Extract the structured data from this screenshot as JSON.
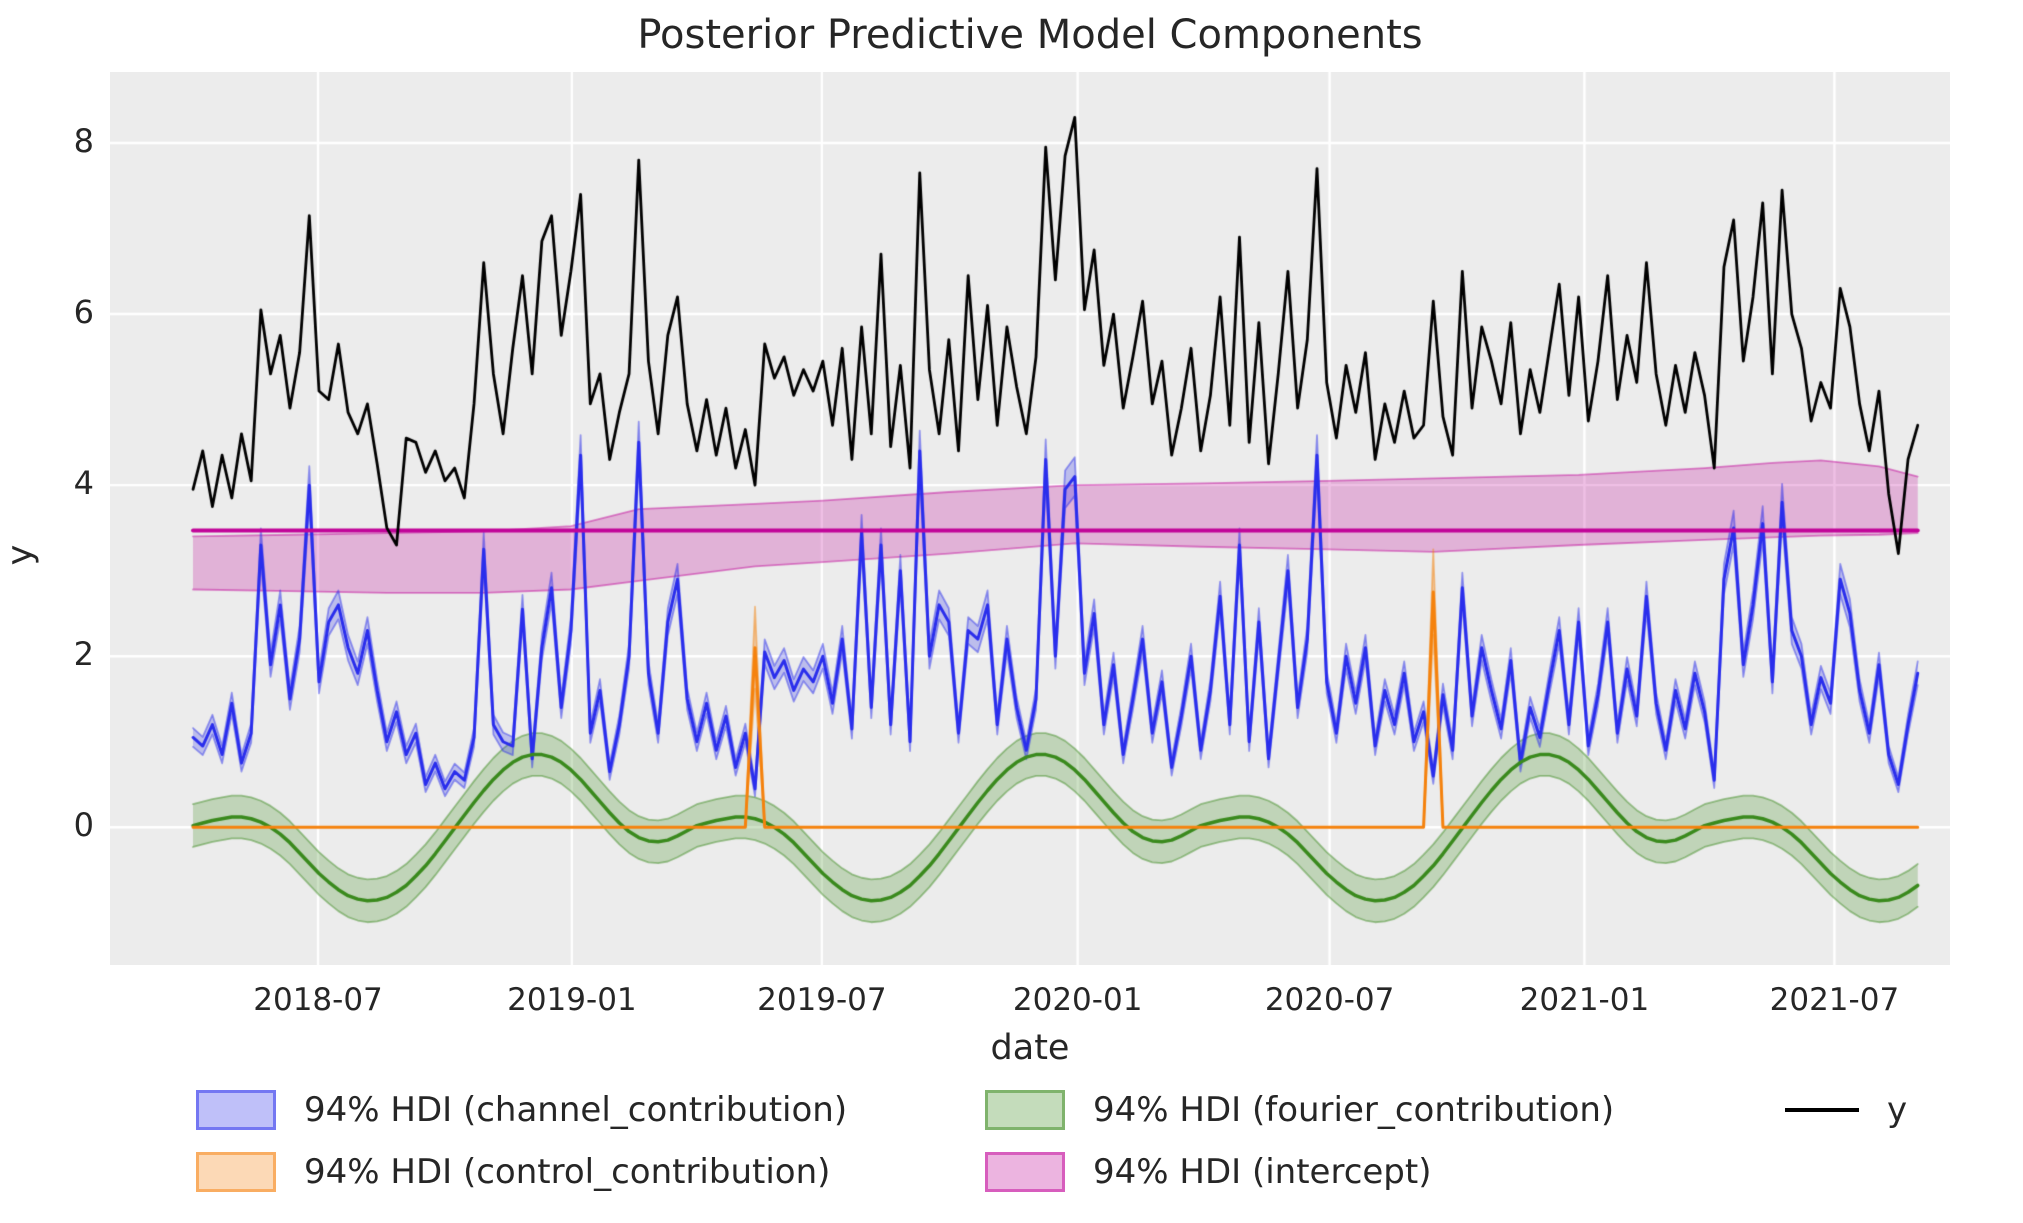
{
  "chart_data": {
    "type": "line",
    "title": "Posterior Predictive Model Components",
    "xlabel": "date",
    "ylabel": "y",
    "background": "#ececec",
    "grid_color": "#ffffff",
    "text_color": "#262626",
    "x_start_date": "2018-04-01",
    "x_step_days": 7,
    "n_points": 179,
    "xlim_weeks": [
      -8.57,
      181.33
    ],
    "ylim": [
      -1.61,
      8.83
    ],
    "y_ticks": [
      0,
      2,
      4,
      6,
      8
    ],
    "x_ticks": [
      {
        "label": "2018-07",
        "week": 12.9
      },
      {
        "label": "2019-01",
        "week": 39.1
      },
      {
        "label": "2019-07",
        "week": 64.9
      },
      {
        "label": "2020-01",
        "week": 91.3
      },
      {
        "label": "2020-07",
        "week": 117.3
      },
      {
        "label": "2021-01",
        "week": 143.6
      },
      {
        "label": "2021-07",
        "week": 169.4
      }
    ],
    "legend": [
      {
        "label": "94% HDI (channel_contribution)",
        "swatch": "band",
        "color": "#2a2eec"
      },
      {
        "label": "94% HDI (control_contribution)",
        "swatch": "band",
        "color": "#f5820d"
      },
      {
        "label": "94% HDI (fourier_contribution)",
        "swatch": "band",
        "color": "#3a8a1d"
      },
      {
        "label": "94% HDI (intercept)",
        "swatch": "band",
        "color": "#c10599"
      },
      {
        "label": "y",
        "swatch": "line",
        "color": "#000000"
      }
    ],
    "series": {
      "y": {
        "name": "y",
        "color": "#000000",
        "line_width": 2.8,
        "values": [
          3.95,
          4.4,
          3.75,
          4.35,
          3.85,
          4.6,
          4.05,
          6.05,
          5.3,
          5.75,
          4.9,
          5.55,
          7.15,
          5.1,
          5.0,
          5.65,
          4.85,
          4.6,
          4.95,
          4.25,
          3.5,
          3.3,
          4.55,
          4.5,
          4.15,
          4.4,
          4.05,
          4.2,
          3.85,
          4.95,
          6.6,
          5.3,
          4.6,
          5.6,
          6.45,
          5.3,
          6.85,
          7.15,
          5.75,
          6.5,
          7.4,
          4.95,
          5.3,
          4.3,
          4.85,
          5.3,
          7.8,
          5.45,
          4.6,
          5.75,
          6.2,
          4.95,
          4.4,
          5.0,
          4.35,
          4.9,
          4.2,
          4.65,
          4.0,
          5.65,
          5.25,
          5.5,
          5.05,
          5.35,
          5.1,
          5.45,
          4.7,
          5.6,
          4.3,
          5.85,
          4.6,
          6.7,
          4.45,
          5.4,
          4.2,
          7.65,
          5.35,
          4.6,
          5.7,
          4.4,
          6.45,
          5.0,
          6.1,
          4.7,
          5.85,
          5.15,
          4.6,
          5.5,
          7.95,
          6.4,
          7.85,
          8.3,
          6.05,
          6.75,
          5.4,
          6.0,
          4.9,
          5.5,
          6.15,
          4.95,
          5.45,
          4.35,
          4.9,
          5.6,
          4.4,
          5.05,
          6.2,
          4.7,
          6.9,
          4.5,
          5.9,
          4.25,
          5.3,
          6.5,
          4.9,
          5.7,
          7.7,
          5.2,
          4.55,
          5.4,
          4.85,
          5.55,
          4.3,
          4.95,
          4.5,
          5.1,
          4.55,
          4.7,
          6.15,
          4.8,
          4.35,
          6.5,
          4.9,
          5.85,
          5.45,
          4.95,
          5.9,
          4.6,
          5.35,
          4.85,
          5.6,
          6.35,
          5.05,
          6.2,
          4.75,
          5.45,
          6.45,
          5.0,
          5.75,
          5.2,
          6.6,
          5.3,
          4.7,
          5.4,
          4.85,
          5.55,
          5.05,
          4.2,
          6.55,
          7.1,
          5.45,
          6.2,
          7.3,
          5.3,
          7.45,
          6.0,
          5.6,
          4.75,
          5.2,
          4.9,
          6.3,
          5.85,
          4.95,
          4.4,
          5.1,
          3.9,
          3.2,
          4.3,
          4.7
        ]
      },
      "channel_contribution": {
        "name": "channel_contribution",
        "hdi_label": "94% HDI (channel_contribution)",
        "color": "#2a2eec",
        "line_width": 3,
        "band_alpha": 0.25,
        "hdi_halfwidth_base": 0.07,
        "hdi_halfwidth_scale": 0.038,
        "values": [
          1.05,
          0.95,
          1.2,
          0.85,
          1.45,
          0.75,
          1.1,
          3.3,
          1.9,
          2.6,
          1.5,
          2.2,
          4.0,
          1.7,
          2.4,
          2.6,
          2.1,
          1.8,
          2.3,
          1.6,
          1.0,
          1.35,
          0.85,
          1.1,
          0.5,
          0.75,
          0.45,
          0.65,
          0.55,
          1.05,
          3.25,
          1.2,
          1.0,
          0.95,
          2.55,
          0.8,
          2.1,
          2.8,
          1.4,
          2.3,
          4.35,
          1.1,
          1.6,
          0.65,
          1.2,
          2.0,
          4.5,
          1.8,
          1.1,
          2.4,
          2.9,
          1.5,
          1.0,
          1.45,
          0.9,
          1.3,
          0.7,
          1.1,
          0.45,
          2.05,
          1.75,
          1.95,
          1.6,
          1.85,
          1.7,
          2.0,
          1.45,
          2.2,
          1.15,
          3.45,
          1.4,
          3.3,
          1.2,
          3.0,
          1.0,
          4.4,
          2.0,
          2.6,
          2.4,
          1.1,
          2.3,
          2.2,
          2.6,
          1.2,
          2.2,
          1.4,
          0.9,
          1.5,
          4.3,
          2.0,
          3.95,
          4.1,
          1.8,
          2.5,
          1.2,
          1.9,
          0.85,
          1.5,
          2.2,
          1.1,
          1.7,
          0.7,
          1.3,
          2.0,
          0.9,
          1.6,
          2.7,
          1.2,
          3.3,
          1.0,
          2.4,
          0.8,
          1.9,
          3.0,
          1.4,
          2.2,
          4.35,
          1.7,
          1.1,
          2.0,
          1.45,
          2.1,
          0.95,
          1.6,
          1.2,
          1.8,
          1.0,
          1.35,
          0.6,
          1.55,
          0.9,
          2.8,
          1.3,
          2.1,
          1.6,
          1.15,
          1.95,
          0.75,
          1.4,
          1.05,
          1.7,
          2.3,
          1.2,
          2.4,
          0.95,
          1.55,
          2.4,
          1.1,
          1.85,
          1.3,
          2.7,
          1.45,
          0.9,
          1.6,
          1.15,
          1.8,
          1.35,
          0.55,
          2.9,
          3.5,
          1.9,
          2.6,
          3.55,
          1.7,
          3.8,
          2.3,
          2.0,
          1.2,
          1.75,
          1.45,
          2.9,
          2.5,
          1.6,
          1.1,
          1.9,
          0.85,
          0.5,
          1.2,
          1.8
        ]
      },
      "control_contribution": {
        "name": "control_contribution",
        "hdi_label": "94% HDI (control_contribution)",
        "color": "#f5820d",
        "line_width": 3,
        "band_alpha": 0.3,
        "baseline": 0,
        "spikes": [
          {
            "week": 58,
            "value": 2.1,
            "hdi_upper": 2.58,
            "hdi_lower": 1.62
          },
          {
            "week": 128,
            "value": 2.75,
            "hdi_upper": 3.25,
            "hdi_lower": 2.25
          }
        ]
      },
      "fourier_contribution": {
        "name": "fourier_contribution",
        "hdi_label": "94% HDI (fourier_contribution)",
        "color": "#3a8a1d",
        "line_width": 3.5,
        "band_alpha": 0.25,
        "hdi_halfwidth": 0.25,
        "values": [
          0.02,
          0.05,
          0.08,
          0.1,
          0.12,
          0.12,
          0.1,
          0.06,
          0.0,
          -0.08,
          -0.18,
          -0.3,
          -0.42,
          -0.54,
          -0.64,
          -0.73,
          -0.8,
          -0.84,
          -0.86,
          -0.85,
          -0.82,
          -0.76,
          -0.68,
          -0.57,
          -0.45,
          -0.31,
          -0.16,
          -0.01,
          0.14,
          0.29,
          0.43,
          0.56,
          0.67,
          0.76,
          0.82,
          0.85,
          0.85,
          0.82,
          0.76,
          0.67,
          0.56,
          0.43,
          0.3,
          0.17,
          0.05,
          -0.05,
          -0.12,
          -0.16,
          -0.17,
          -0.15,
          -0.1,
          -0.04,
          0.02,
          0.05,
          0.08,
          0.1,
          0.12,
          0.12,
          0.1,
          0.06,
          0.0,
          -0.08,
          -0.18,
          -0.3,
          -0.42,
          -0.54,
          -0.64,
          -0.73,
          -0.8,
          -0.84,
          -0.86,
          -0.85,
          -0.82,
          -0.76,
          -0.68,
          -0.57,
          -0.45,
          -0.31,
          -0.16,
          -0.01,
          0.14,
          0.29,
          0.43,
          0.56,
          0.67,
          0.76,
          0.82,
          0.85,
          0.85,
          0.82,
          0.76,
          0.67,
          0.56,
          0.43,
          0.3,
          0.17,
          0.05,
          -0.05,
          -0.12,
          -0.16,
          -0.17,
          -0.15,
          -0.1,
          -0.04,
          0.02,
          0.05,
          0.08,
          0.1,
          0.12,
          0.12,
          0.1,
          0.06,
          0.0,
          -0.08,
          -0.18,
          -0.3,
          -0.42,
          -0.54,
          -0.64,
          -0.73,
          -0.8,
          -0.84,
          -0.86,
          -0.85,
          -0.82,
          -0.76,
          -0.68,
          -0.57,
          -0.45,
          -0.31,
          -0.16,
          -0.01,
          0.14,
          0.29,
          0.43,
          0.56,
          0.67,
          0.76,
          0.82,
          0.85,
          0.85,
          0.82,
          0.76,
          0.67,
          0.56,
          0.43,
          0.3,
          0.17,
          0.05,
          -0.05,
          -0.12,
          -0.16,
          -0.17,
          -0.15,
          -0.1,
          -0.04,
          0.02,
          0.05,
          0.08,
          0.1,
          0.12,
          0.12,
          0.1,
          0.06,
          0.0,
          -0.08,
          -0.18,
          -0.3,
          -0.42,
          -0.54,
          -0.64,
          -0.73,
          -0.8,
          -0.84,
          -0.86,
          -0.85,
          -0.82,
          -0.76,
          -0.68
        ]
      },
      "intercept": {
        "name": "intercept",
        "hdi_label": "94% HDI (intercept)",
        "color": "#c10599",
        "line_width": 4,
        "band_alpha": 0.25,
        "value": 3.47,
        "hdi_keypoints": {
          "weeks": [
            0,
            10,
            20,
            30,
            39,
            46,
            58,
            65,
            78,
            91,
            104,
            117,
            128,
            143,
            156,
            163,
            168,
            174,
            178
          ],
          "lower": [
            2.78,
            2.76,
            2.74,
            2.74,
            2.78,
            2.88,
            3.05,
            3.1,
            3.2,
            3.32,
            3.28,
            3.25,
            3.22,
            3.3,
            3.36,
            3.39,
            3.41,
            3.42,
            3.44
          ],
          "upper": [
            3.4,
            3.42,
            3.44,
            3.46,
            3.52,
            3.72,
            3.78,
            3.82,
            3.92,
            4.0,
            4.02,
            4.05,
            4.08,
            4.12,
            4.2,
            4.26,
            4.29,
            4.22,
            4.1
          ]
        }
      }
    }
  }
}
